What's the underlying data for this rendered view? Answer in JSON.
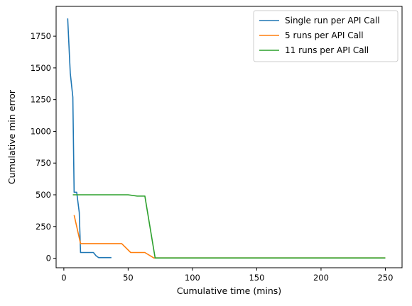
{
  "chart_data": {
    "type": "line",
    "title": "",
    "xlabel": "Cumulative time (mins)",
    "ylabel": "Cumulative min error",
    "xlim": [
      -6,
      263
    ],
    "ylim": [
      -75,
      1985
    ],
    "xticks": [
      0,
      50,
      100,
      150,
      200,
      250
    ],
    "yticks": [
      0,
      250,
      500,
      750,
      1000,
      1250,
      1500,
      1750
    ],
    "grid": false,
    "legend": "top-right",
    "series": [
      {
        "name": "Single run per API Call",
        "color": "#1f77b4",
        "x": [
          3,
          5,
          7,
          8,
          10,
          12,
          13,
          15,
          22,
          23,
          25,
          27,
          30,
          33,
          37
        ],
        "y": [
          1890,
          1460,
          1270,
          520,
          520,
          360,
          45,
          45,
          45,
          45,
          20,
          5,
          5,
          5,
          5
        ]
      },
      {
        "name": "5 runs per API Call",
        "color": "#ff7f0e",
        "x": [
          8,
          13,
          20,
          30,
          40,
          45,
          52,
          60,
          63,
          70,
          80,
          150,
          250
        ],
        "y": [
          340,
          115,
          115,
          115,
          115,
          115,
          45,
          45,
          45,
          2,
          2,
          2,
          2
        ]
      },
      {
        "name": "11 runs per API Call",
        "color": "#2ca02c",
        "x": [
          7,
          20,
          40,
          50,
          57,
          63,
          71,
          80,
          150,
          250
        ],
        "y": [
          500,
          500,
          500,
          500,
          490,
          490,
          2,
          2,
          2,
          2
        ]
      }
    ]
  }
}
